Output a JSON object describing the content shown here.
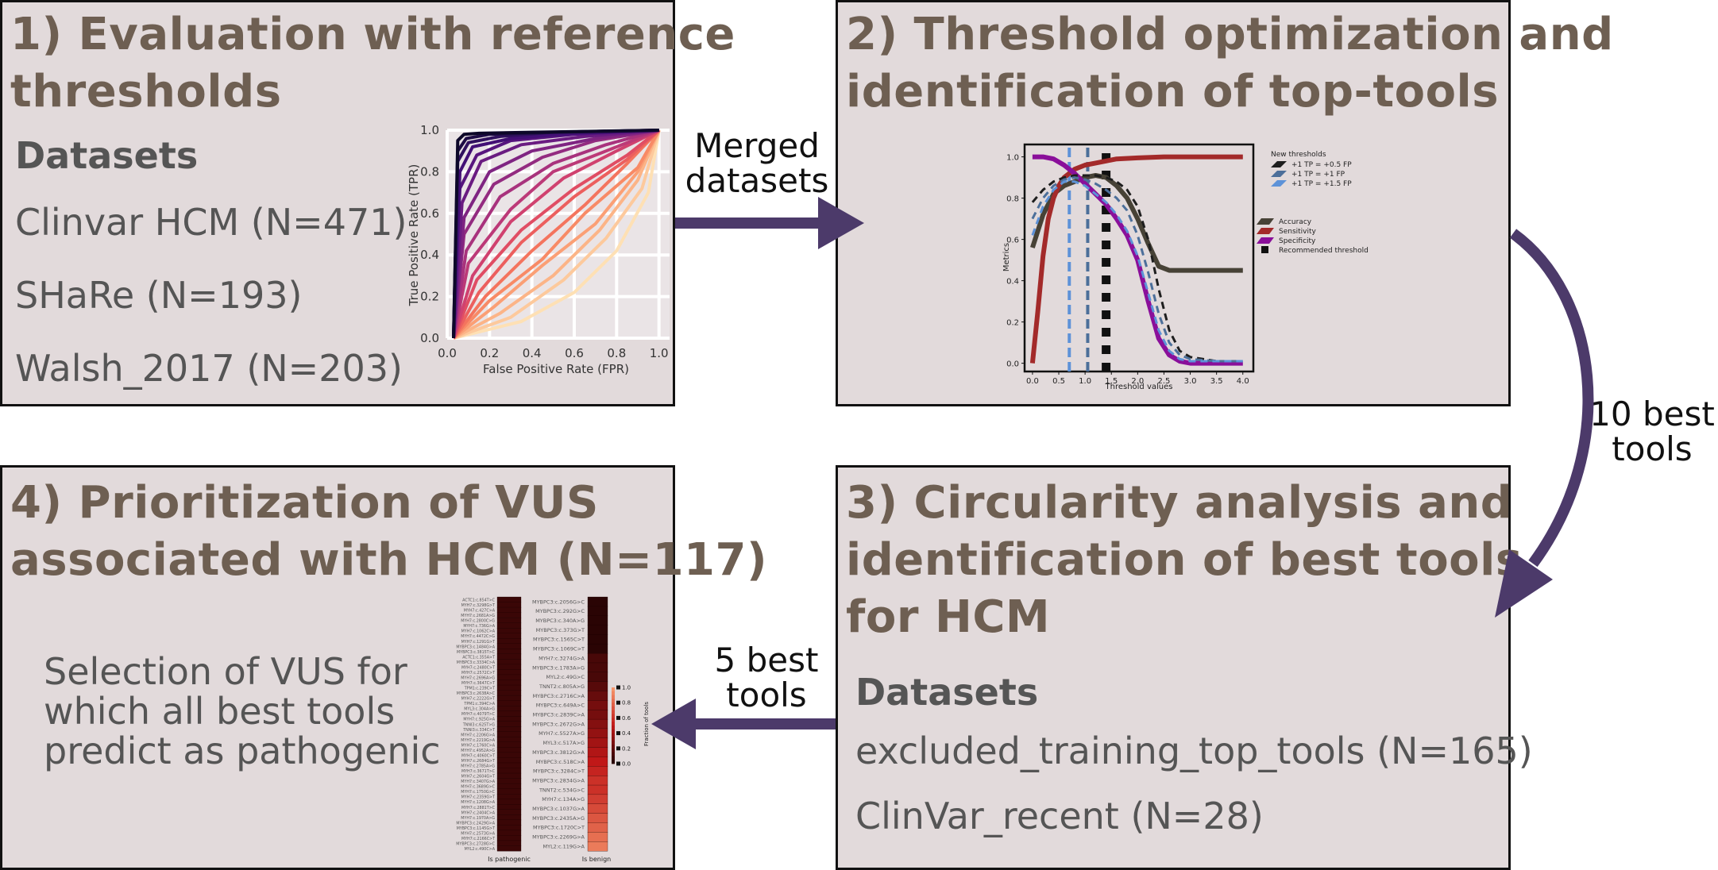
{
  "colors": {
    "panel_bg": "#e2dadb",
    "title": "#6e5f52",
    "arrow": "#4c3a6a",
    "accuracy": "#474236",
    "sensitivity": "#a32a2a",
    "specificity": "#8a0f9a",
    "thr_dark": "#1e1e1e",
    "thr_mid": "#4c6f9a",
    "thr_light": "#5d92d8"
  },
  "panels": {
    "p1": {
      "title_line1": "1) Evaluation with reference",
      "title_line2": "thresholds",
      "datasets_heading": "Datasets",
      "datasets": [
        "Clinvar HCM (N=471)",
        "SHaRe (N=193)",
        "Walsh_2017 (N=203)"
      ]
    },
    "p2": {
      "title_line1": "2) Threshold optimization and",
      "title_line2": "identification of top-tools"
    },
    "p3": {
      "title_line1": "3) Circularity analysis and",
      "title_line2": "identification of best tools",
      "title_line3": "for HCM",
      "datasets_heading": "Datasets",
      "datasets": [
        "excluded_training_top_tools (N=165)",
        "ClinVar_recent (N=28)"
      ]
    },
    "p4": {
      "title_line1": "4) Prioritization of VUS",
      "title_line2": "associated with HCM (N=117)",
      "body_line1": "Selection of VUS for",
      "body_line2": "which all best tools",
      "body_line3": "predict as pathogenic"
    }
  },
  "connectors": {
    "merged_line1": "Merged",
    "merged_line2": "datasets",
    "best10_line1": "10 best",
    "best10_line2": "tools",
    "best5_line1": "5 best",
    "best5_line2": "tools"
  },
  "chart_data": [
    {
      "type": "line",
      "id": "roc",
      "xlabel": "False Positive Rate (FPR)",
      "ylabel": "True Positive Rate (TPR)",
      "xlim": [
        0.0,
        1.05
      ],
      "ylim": [
        0.0,
        1.0
      ],
      "xticks": [
        "0.0",
        "0.2",
        "0.4",
        "0.6",
        "0.8",
        "1.0"
      ],
      "yticks": [
        "0.0",
        "0.2",
        "0.4",
        "0.6",
        "0.8",
        "1.0"
      ],
      "grid": true,
      "series": [
        {
          "color": "#0d0829",
          "x": [
            0.03,
            0.05,
            0.08,
            0.15,
            0.4,
            1.0
          ],
          "y": [
            0.0,
            0.95,
            0.98,
            0.985,
            0.99,
            1.0
          ]
        },
        {
          "color": "#1e0c45",
          "x": [
            0.03,
            0.05,
            0.09,
            0.2,
            0.5,
            1.0
          ],
          "y": [
            0.0,
            0.9,
            0.96,
            0.98,
            0.99,
            1.0
          ]
        },
        {
          "color": "#30115e",
          "x": [
            0.03,
            0.05,
            0.1,
            0.25,
            0.5,
            1.0
          ],
          "y": [
            0.0,
            0.85,
            0.94,
            0.97,
            0.99,
            1.0
          ]
        },
        {
          "color": "#420f75",
          "x": [
            0.03,
            0.06,
            0.12,
            0.3,
            0.6,
            1.0
          ],
          "y": [
            0.0,
            0.8,
            0.92,
            0.96,
            0.985,
            1.0
          ]
        },
        {
          "color": "#57157e",
          "x": [
            0.03,
            0.06,
            0.14,
            0.3,
            0.6,
            1.0
          ],
          "y": [
            0.0,
            0.72,
            0.88,
            0.95,
            0.98,
            1.0
          ]
        },
        {
          "color": "#6a1c81",
          "x": [
            0.03,
            0.07,
            0.16,
            0.35,
            0.65,
            1.0
          ],
          "y": [
            0.0,
            0.65,
            0.85,
            0.93,
            0.97,
            1.0
          ]
        },
        {
          "color": "#7f2482",
          "x": [
            0.03,
            0.08,
            0.2,
            0.4,
            0.7,
            1.0
          ],
          "y": [
            0.0,
            0.58,
            0.8,
            0.9,
            0.96,
            1.0
          ]
        },
        {
          "color": "#932b80",
          "x": [
            0.03,
            0.08,
            0.22,
            0.45,
            0.7,
            1.0
          ],
          "y": [
            0.0,
            0.5,
            0.74,
            0.87,
            0.95,
            1.0
          ]
        },
        {
          "color": "#a8327d",
          "x": [
            0.03,
            0.09,
            0.25,
            0.5,
            0.75,
            1.0
          ],
          "y": [
            0.0,
            0.42,
            0.68,
            0.84,
            0.93,
            1.0
          ]
        },
        {
          "color": "#bc3978",
          "x": [
            0.03,
            0.1,
            0.3,
            0.5,
            0.8,
            1.0
          ],
          "y": [
            0.0,
            0.36,
            0.62,
            0.8,
            0.92,
            1.0
          ]
        },
        {
          "color": "#d0416f",
          "x": [
            0.03,
            0.12,
            0.3,
            0.55,
            0.8,
            1.0
          ],
          "y": [
            0.0,
            0.3,
            0.56,
            0.77,
            0.9,
            1.0
          ]
        },
        {
          "color": "#e04d64",
          "x": [
            0.03,
            0.14,
            0.35,
            0.6,
            0.85,
            1.0
          ],
          "y": [
            0.0,
            0.28,
            0.52,
            0.72,
            0.88,
            1.0
          ]
        },
        {
          "color": "#ec5f5e",
          "x": [
            0.03,
            0.15,
            0.35,
            0.6,
            0.85,
            1.0
          ],
          "y": [
            0.0,
            0.22,
            0.46,
            0.68,
            0.86,
            1.0
          ]
        },
        {
          "color": "#f4745e",
          "x": [
            0.03,
            0.18,
            0.4,
            0.65,
            0.85,
            1.0
          ],
          "y": [
            0.0,
            0.2,
            0.42,
            0.64,
            0.84,
            1.0
          ]
        },
        {
          "color": "#f88a66",
          "x": [
            0.03,
            0.2,
            0.45,
            0.65,
            0.9,
            1.0
          ],
          "y": [
            0.0,
            0.18,
            0.38,
            0.6,
            0.82,
            1.0
          ]
        },
        {
          "color": "#fb9f75",
          "x": [
            0.03,
            0.22,
            0.45,
            0.7,
            0.9,
            1.0
          ],
          "y": [
            0.0,
            0.15,
            0.35,
            0.55,
            0.8,
            1.0
          ]
        },
        {
          "color": "#fcb487",
          "x": [
            0.03,
            0.25,
            0.5,
            0.72,
            0.9,
            1.0
          ],
          "y": [
            0.0,
            0.12,
            0.3,
            0.52,
            0.76,
            1.0
          ]
        },
        {
          "color": "#fdc99c",
          "x": [
            0.03,
            0.3,
            0.55,
            0.75,
            0.92,
            1.0
          ],
          "y": [
            0.0,
            0.1,
            0.28,
            0.48,
            0.72,
            1.0
          ]
        },
        {
          "color": "#fee0b4",
          "x": [
            0.03,
            0.35,
            0.6,
            0.8,
            0.95,
            1.0
          ],
          "y": [
            0.0,
            0.08,
            0.22,
            0.42,
            0.7,
            1.0
          ]
        }
      ]
    },
    {
      "type": "line",
      "id": "threshold",
      "xlabel": "Threshold values",
      "ylabel": "Metrics",
      "xlim": [
        -0.15,
        4.2
      ],
      "ylim": [
        -0.04,
        1.06
      ],
      "xticks": [
        "0.0",
        "0.5",
        "1.0",
        "1.5",
        "2.0",
        "2.5",
        "3.0",
        "3.5",
        "4.0"
      ],
      "yticks": [
        "0.0",
        "0.2",
        "0.4",
        "0.6",
        "0.8",
        "1.0"
      ],
      "legend_position": "right",
      "legend_thresholds_title": "New thresholds",
      "legend_thresholds": [
        "+1 TP = +0.5 FP",
        "+1 TP = +1 FP",
        "+1 TP = +1.5 FP"
      ],
      "legend_metrics": [
        "Accuracy",
        "Sensitivity",
        "Specificity",
        "Recommended threshold"
      ],
      "series": [
        {
          "name": "Accuracy",
          "x": [
            0,
            0.2,
            0.4,
            0.6,
            0.8,
            1.0,
            1.2,
            1.4,
            1.6,
            1.8,
            2.0,
            2.2,
            2.4,
            2.6,
            3.0,
            3.5,
            4.0
          ],
          "y": [
            0.56,
            0.72,
            0.82,
            0.86,
            0.88,
            0.9,
            0.91,
            0.9,
            0.86,
            0.8,
            0.7,
            0.58,
            0.47,
            0.45,
            0.45,
            0.45,
            0.45
          ]
        },
        {
          "name": "Sensitivity",
          "x": [
            0,
            0.1,
            0.2,
            0.3,
            0.4,
            0.5,
            0.6,
            0.8,
            1.0,
            1.2,
            1.4,
            1.6,
            2.0,
            2.5,
            3.0,
            4.0
          ],
          "y": [
            0.0,
            0.25,
            0.52,
            0.7,
            0.8,
            0.86,
            0.9,
            0.94,
            0.96,
            0.97,
            0.98,
            0.99,
            0.995,
            1.0,
            1.0,
            1.0
          ]
        },
        {
          "name": "Specificity",
          "x": [
            0,
            0.2,
            0.4,
            0.6,
            0.8,
            1.0,
            1.2,
            1.4,
            1.6,
            1.8,
            2.0,
            2.2,
            2.4,
            2.6,
            2.8,
            3.0,
            3.5,
            4.0
          ],
          "y": [
            1.0,
            1.0,
            0.99,
            0.96,
            0.92,
            0.87,
            0.82,
            0.77,
            0.7,
            0.62,
            0.5,
            0.3,
            0.12,
            0.04,
            0.01,
            0.0,
            0.0,
            0.0
          ]
        },
        {
          "name": "+1 TP = +0.5 FP",
          "x": [
            0,
            0.2,
            0.4,
            0.6,
            0.8,
            1.0,
            1.2,
            1.4,
            1.6,
            1.8,
            2.0,
            2.2,
            2.4,
            2.6,
            2.8,
            3.0,
            3.5,
            4.0
          ],
          "y": [
            0.78,
            0.84,
            0.88,
            0.9,
            0.91,
            0.91,
            0.91,
            0.9,
            0.88,
            0.84,
            0.76,
            0.6,
            0.36,
            0.16,
            0.06,
            0.03,
            0.01,
            0.01
          ]
        },
        {
          "name": "+1 TP = +1 FP",
          "x": [
            0,
            0.2,
            0.4,
            0.6,
            0.8,
            1.0,
            1.2,
            1.4,
            1.6,
            1.8,
            2.0,
            2.2,
            2.4,
            2.6,
            2.8,
            3.0,
            3.5,
            4.0
          ],
          "y": [
            0.7,
            0.8,
            0.86,
            0.89,
            0.9,
            0.89,
            0.87,
            0.84,
            0.8,
            0.74,
            0.62,
            0.44,
            0.24,
            0.1,
            0.04,
            0.02,
            0.01,
            0.01
          ]
        },
        {
          "name": "+1 TP = +1.5 FP",
          "x": [
            0,
            0.2,
            0.4,
            0.6,
            0.8,
            1.0,
            1.2,
            1.4,
            1.6,
            1.8,
            2.0,
            2.2,
            2.4,
            2.6,
            2.8,
            3.0,
            3.5,
            4.0
          ],
          "y": [
            0.62,
            0.76,
            0.84,
            0.88,
            0.88,
            0.86,
            0.82,
            0.78,
            0.72,
            0.64,
            0.52,
            0.34,
            0.16,
            0.06,
            0.02,
            0.01,
            0.01,
            0.01
          ]
        }
      ],
      "vlines": [
        {
          "name": "+1 TP = +1.5 FP",
          "x": 0.7
        },
        {
          "name": "+1 TP = +1 FP",
          "x": 1.05
        },
        {
          "name": "Recommended threshold",
          "x": 1.4
        }
      ]
    },
    {
      "type": "heatmap",
      "id": "vus",
      "xlabel_left": "Is pathogenic",
      "xlabel_right": "Is benign",
      "colorbar_label": "Fraction of tools",
      "colorbar_ticks": [
        "0.0",
        "0.2",
        "0.4",
        "0.6",
        "0.8",
        "1.0"
      ],
      "left_rows": [
        "ACTC1:c.854T>C",
        "MYH7:c.3298G>T",
        "MYH7:c.427C>A",
        "MYH7:c.2681A>G",
        "MYH7:c.2800C>G",
        "MYH7:c.736G>A",
        "MYH7:c.1062C>A",
        "MYH7:c.4472C>G",
        "MYH7:c.1291G>T",
        "MYBPC3:c.1484G>A",
        "MYBPC3:c.3815T>C",
        "ACTC1:c.355A>T",
        "MYBPC3:c.3334C>A",
        "MYH7:c.2480C>T",
        "MYH7:c.2572C>T",
        "MYH7:c.2696A>G",
        "MYH7:c.3647C>T",
        "TPM1:c.239C>T",
        "MYBPC3:c.2638A>C",
        "MYH7:c.2222G>T",
        "TPM1:c.394C>A",
        "MYL3:c.304A>G",
        "MYH7:c.4079T>C",
        "MYH7:c.925G>A",
        "TNNI3:c.625T>G",
        "TNNI3:c.334C>T",
        "MYH7:c.2206G>A",
        "MYH7:c.2219G>A",
        "MYH7:c.1760C>A",
        "MYH7:c.4952A>G",
        "MYH7:c.4060C>T",
        "MYH7:c.2684G>T",
        "MYH7:c.2785A>G",
        "MYH7:c.3671T>C",
        "MYH7:c.2604G>T",
        "MYH7:c.3407G>A",
        "MYH7:c.3689G>C",
        "MYH7:c.1750G>C",
        "MYH7:c.2359G>T",
        "MYH7:c.1208G>A",
        "MYH7:c.2881T>C",
        "MYH7:c.2404C>A",
        "MYH7:c.1970A>G",
        "MYBPC3:c.2429G>A",
        "MYBPC3:c.1145G>T",
        "MYH7:c.2573G>A",
        "MYH7:c.2166C>T",
        "MYBPC3:c.2728G>C",
        "MYL2:c.490C>A"
      ],
      "right_rows": [
        "MYBPC3:c.2056G>C",
        "MYBPC3:c.292G>C",
        "MYBPC3:c.340A>G",
        "MYBPC3:c.373G>T",
        "MYBPC3:c.1565C>T",
        "MYBPC3:c.1069C>T",
        "MYH7:c.3274G>A",
        "MYBPC3:c.1783A>G",
        "MYL2:c.49G>C",
        "TNNT2:c.805A>G",
        "MYBPC3:c.2716C>A",
        "MYBPC3:c.649A>C",
        "MYBPC3:c.2839C>A",
        "MYBPC3:c.2672G>A",
        "MYH7:c.5527A>G",
        "MYL3:c.517A>G",
        "MYBPC3:c.3812G>A",
        "MYBPC3:c.518C>A",
        "MYBPC3:c.3284C>T",
        "MYBPC3:c.2834G>A",
        "TNNT2:c.534G>C",
        "MYH7:c.134A>G",
        "MYBPC3:c.1037G>A",
        "MYBPC3:c.2435A>G",
        "MYBPC3:c.1720C>T",
        "MYBPC3:c.2269G>A",
        "MYL2:c.119G>A"
      ],
      "right_values": [
        0.0,
        0.0,
        0.0,
        0.0,
        0.0,
        0.0,
        0.1,
        0.1,
        0.1,
        0.15,
        0.2,
        0.25,
        0.25,
        0.3,
        0.35,
        0.4,
        0.45,
        0.5,
        0.55,
        0.6,
        0.6,
        0.65,
        0.7,
        0.75,
        0.8,
        0.85,
        0.9
      ]
    }
  ]
}
